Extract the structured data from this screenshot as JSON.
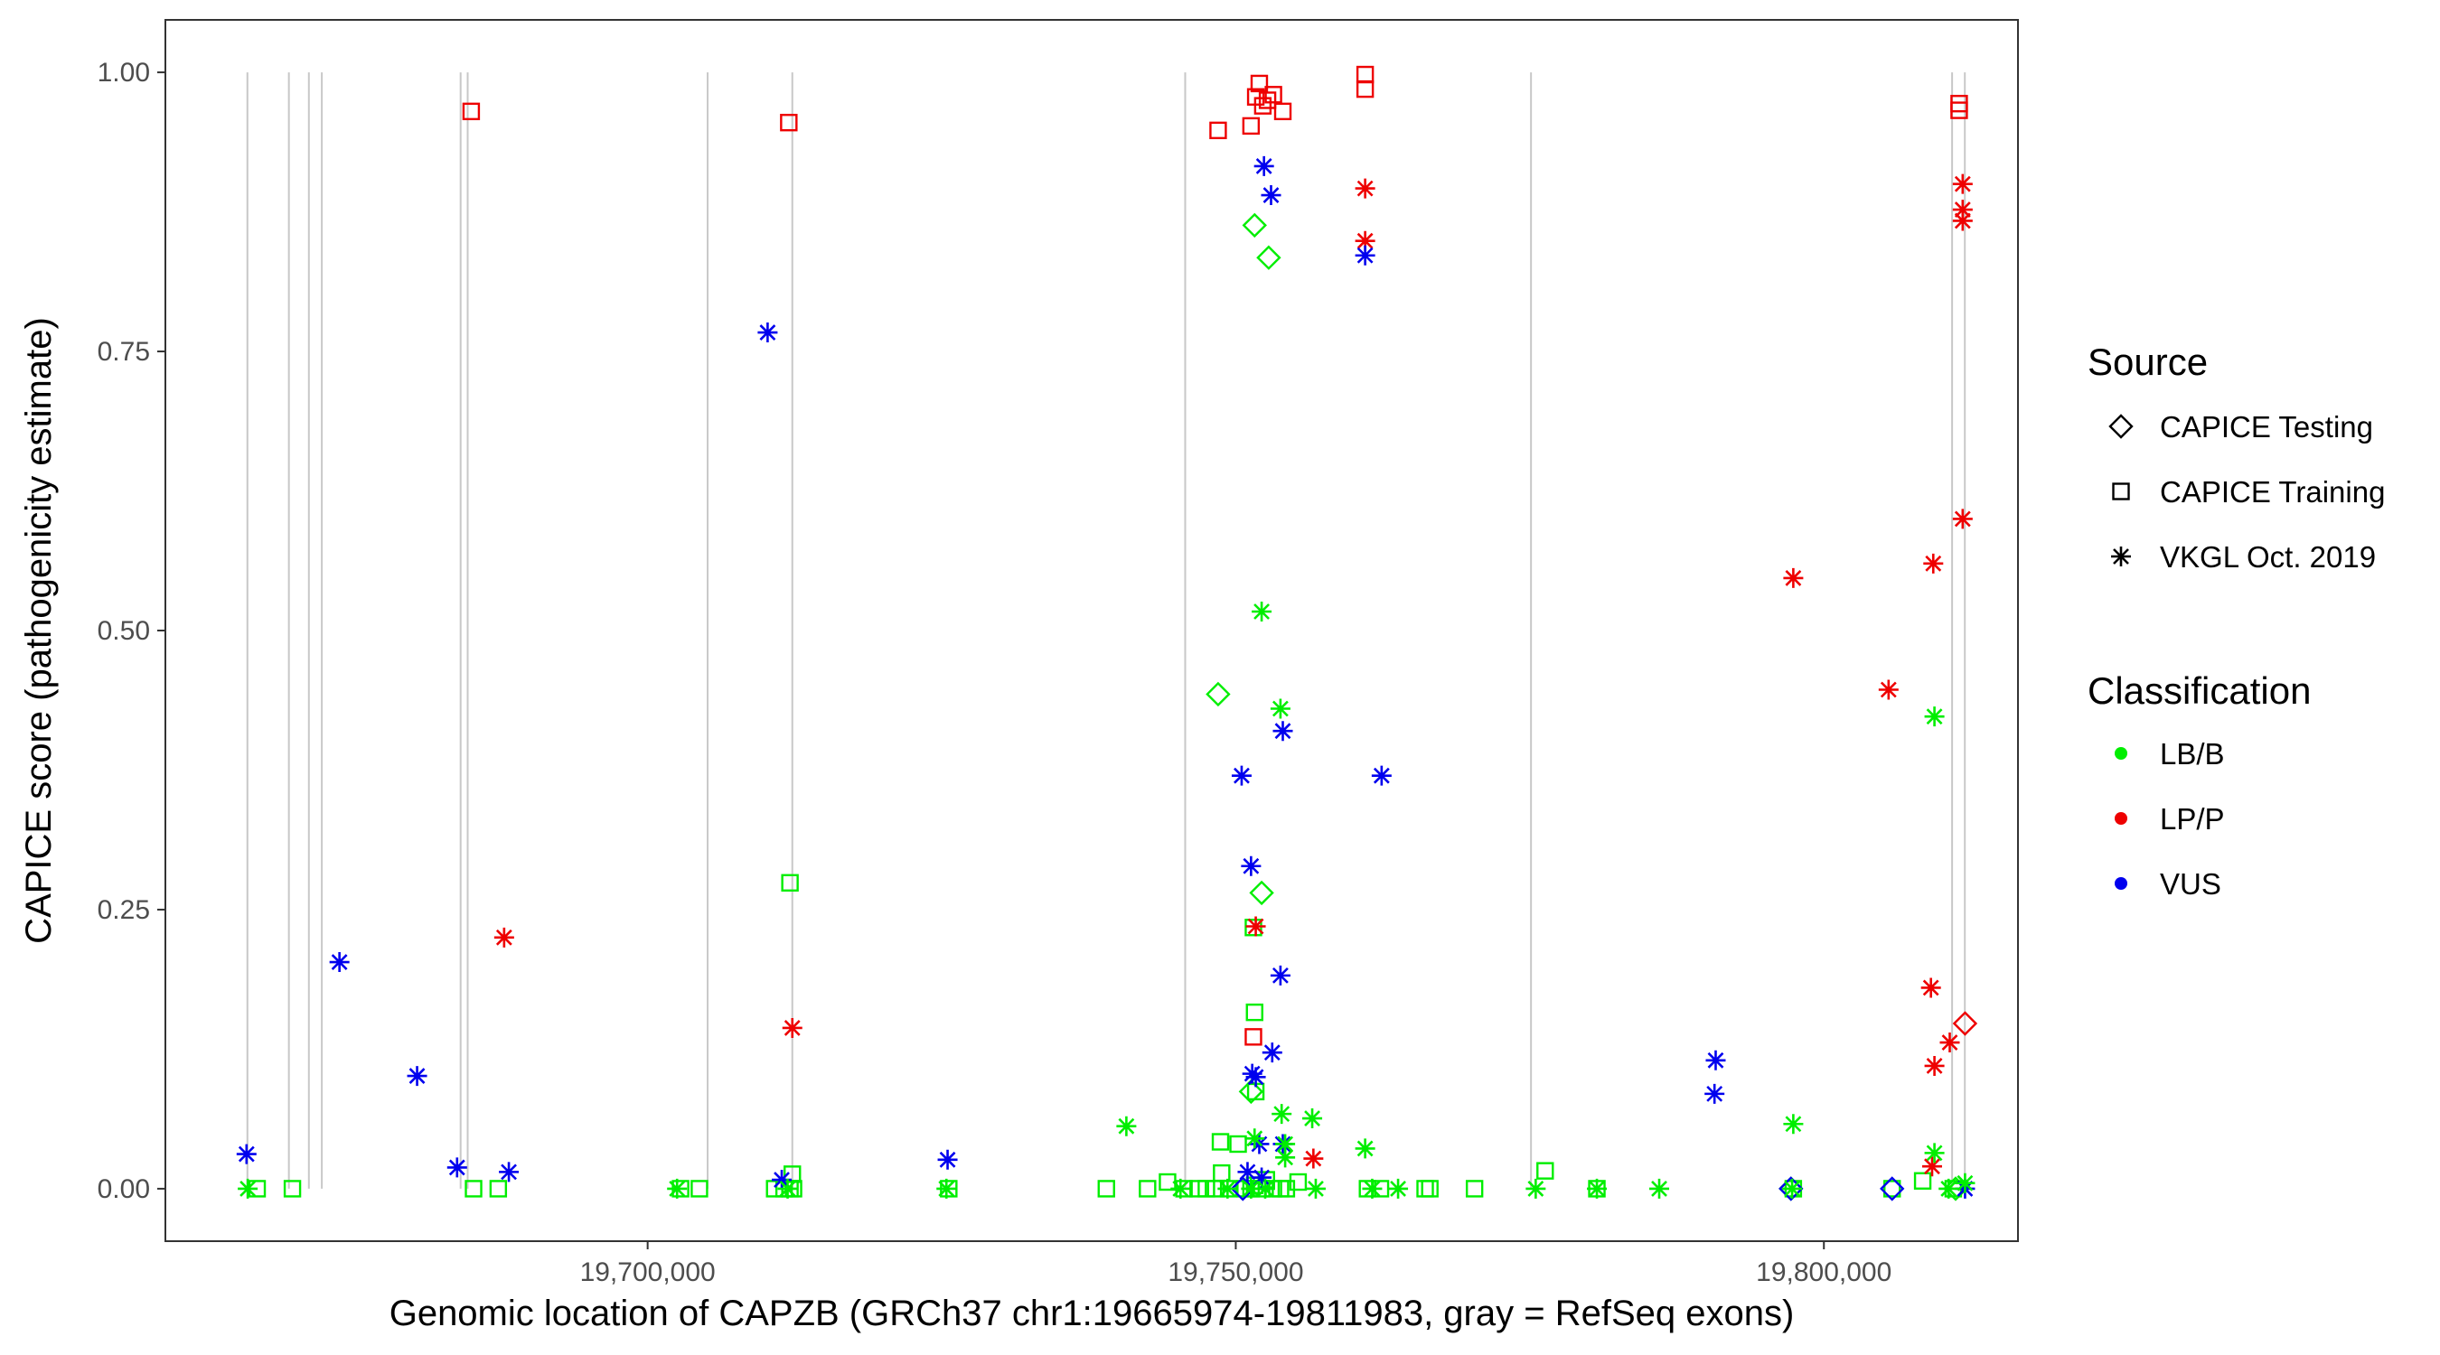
{
  "chart_data": {
    "type": "scatter",
    "title": "",
    "xlabel": "Genomic location of CAPZB (GRCh37 chr1:19665974-19811983, gray = RefSeq exons)",
    "ylabel": "CAPICE score (pathogenicity estimate)",
    "xlim": [
      19659000,
      19816500
    ],
    "ylim": [
      -0.047,
      1.047
    ],
    "grid": false,
    "x_ticks": [
      {
        "value": 19700000,
        "label": "19,700,000"
      },
      {
        "value": 19750000,
        "label": "19,750,000"
      },
      {
        "value": 19800000,
        "label": "19,800,000"
      }
    ],
    "y_ticks": [
      {
        "value": 0.0,
        "label": "0.00"
      },
      {
        "value": 0.25,
        "label": "0.25"
      },
      {
        "value": 0.5,
        "label": "0.50"
      },
      {
        "value": 0.75,
        "label": "0.75"
      },
      {
        "value": 1.0,
        "label": "1.00"
      }
    ],
    "exons": [
      19665974,
      19669500,
      19671200,
      19672300,
      19684100,
      19684700,
      19705100,
      19712300,
      19745700,
      19775100,
      19810900,
      19811983
    ],
    "shape_legend": {
      "title": "Source",
      "items": [
        {
          "key": "testing",
          "shape": "diamond",
          "label": "CAPICE Testing"
        },
        {
          "key": "training",
          "shape": "square",
          "label": "CAPICE Training"
        },
        {
          "key": "vkgl",
          "shape": "asterisk",
          "label": "VKGL Oct. 2019"
        }
      ]
    },
    "color_legend": {
      "title": "Classification",
      "items": [
        {
          "key": "LB/B",
          "label": "LB/B",
          "color": "#00ee00"
        },
        {
          "key": "LP/P",
          "label": "LP/P",
          "color": "#ee0000"
        },
        {
          "key": "VUS",
          "label": "VUS",
          "color": "#0000ee"
        }
      ]
    },
    "series": [
      {
        "source": "training",
        "class": "LP/P",
        "x": [
          19685000,
          19712000,
          19748500,
          19751300,
          19751700,
          19752000,
          19752300,
          19752700,
          19753200,
          19754000,
          19761000,
          19761000,
          19811500,
          19811500,
          19751500
        ],
        "y": [
          0.965,
          0.955,
          0.948,
          0.952,
          0.978,
          0.99,
          0.97,
          0.975,
          0.98,
          0.965,
          0.998,
          0.985,
          0.972,
          0.966,
          0.136
        ]
      },
      {
        "source": "training",
        "class": "LB/B",
        "x": [
          19666800,
          19669800,
          19685200,
          19687300,
          19702800,
          19704400,
          19710800,
          19711600,
          19712100,
          19712300,
          19712400,
          19725600,
          19739000,
          19742500,
          19744200,
          19745600,
          19746800,
          19747500,
          19748300,
          19748800,
          19749400,
          19750200,
          19750800,
          19751300,
          19751600,
          19752200,
          19752600,
          19753200,
          19753800,
          19754300,
          19755300,
          19761200,
          19762300,
          19766100,
          19766500,
          19770300,
          19776300,
          19780700,
          19797400,
          19805800,
          19808400,
          19811000,
          19712100,
          19751500,
          19751600,
          19751700,
          19748700
        ],
        "y": [
          0.0,
          0.0,
          0.0,
          0.0,
          0.0,
          0.0,
          0.0,
          0.0,
          0.0,
          0.013,
          0.0,
          0.0,
          0.0,
          0.0,
          0.006,
          0.0,
          0.0,
          0.0,
          0.0,
          0.014,
          0.0,
          0.04,
          0.0,
          0.0,
          0.003,
          0.0,
          0.008,
          0.0,
          0.0,
          0.0,
          0.006,
          0.0,
          0.0,
          0.0,
          0.0,
          0.0,
          0.016,
          0.0,
          0.0,
          0.0,
          0.007,
          0.0,
          0.274,
          0.234,
          0.158,
          0.087,
          0.042
        ]
      },
      {
        "source": "testing",
        "class": "LB/B",
        "x": [
          19751600,
          19752800,
          19748500,
          19752200,
          19751300,
          19797200,
          19811200
        ],
        "y": [
          0.863,
          0.834,
          0.443,
          0.265,
          0.087,
          0.0,
          0.0
        ]
      },
      {
        "source": "testing",
        "class": "LP/P",
        "x": [
          19812000
        ],
        "y": [
          0.148
        ]
      },
      {
        "source": "testing",
        "class": "VUS",
        "x": [
          19750600,
          19797200,
          19805800
        ],
        "y": [
          0.0,
          0.0,
          0.0
        ]
      },
      {
        "source": "vkgl",
        "class": "LP/P",
        "x": [
          19687800,
          19712300,
          19751700,
          19756600,
          19761000,
          19761000,
          19797400,
          19805500,
          19809300,
          19809100,
          19810700,
          19811800,
          19811800,
          19811800,
          19811800,
          19809400,
          19809200
        ],
        "y": [
          0.225,
          0.144,
          0.235,
          0.027,
          0.896,
          0.849,
          0.547,
          0.447,
          0.56,
          0.18,
          0.131,
          0.9,
          0.877,
          0.867,
          0.6,
          0.11,
          0.02
        ]
      },
      {
        "source": "vkgl",
        "class": "VUS",
        "x": [
          19665900,
          19673800,
          19680400,
          19683800,
          19688200,
          19710200,
          19711400,
          19725500,
          19750500,
          19751300,
          19751400,
          19751700,
          19752000,
          19752400,
          19753000,
          19753100,
          19753800,
          19754000,
          19754000,
          19761000,
          19762400,
          19790800,
          19790700,
          19812000,
          19751000,
          19752200
        ],
        "y": [
          0.031,
          0.203,
          0.101,
          0.019,
          0.015,
          0.767,
          0.008,
          0.026,
          0.37,
          0.289,
          0.103,
          0.1,
          0.04,
          0.916,
          0.89,
          0.122,
          0.191,
          0.04,
          0.41,
          0.836,
          0.37,
          0.115,
          0.085,
          0.0,
          0.015,
          0.01
        ]
      },
      {
        "source": "vkgl",
        "class": "LB/B",
        "x": [
          19666000,
          19702500,
          19711900,
          19725400,
          19740700,
          19751600,
          19752200,
          19753800,
          19753900,
          19754200,
          19754200,
          19756500,
          19761000,
          19756800,
          19763800,
          19775500,
          19780700,
          19786000,
          19797400,
          19797300,
          19809400,
          19809400,
          19810600,
          19812000,
          19761600,
          19751300,
          19752500,
          19749300,
          19745300
        ],
        "y": [
          0.0,
          0.0,
          0.0,
          0.0,
          0.056,
          0.045,
          0.517,
          0.43,
          0.067,
          0.04,
          0.028,
          0.063,
          0.036,
          0.0,
          0.0,
          0.0,
          0.0,
          0.0,
          0.058,
          0.0,
          0.423,
          0.032,
          0.0,
          0.005,
          0.0,
          0.0,
          0.0,
          0.0,
          0.0
        ]
      }
    ]
  }
}
